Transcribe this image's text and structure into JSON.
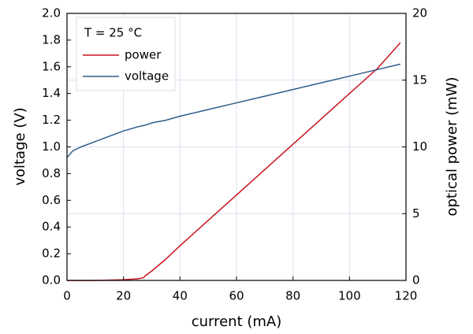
{
  "chart_data": {
    "type": "line",
    "x_label": "current (mA)",
    "y_label": "voltage (V)",
    "y2_label": "optical power (mW)",
    "legend_title": "T = 25 °C",
    "legend": "upper left",
    "grid": true,
    "x": [
      0,
      2,
      5,
      10,
      15,
      20,
      25,
      27,
      28,
      30,
      35,
      40,
      50,
      60,
      70,
      80,
      90,
      100,
      110,
      118
    ],
    "series": [
      {
        "name": "power",
        "color": "#c8141e",
        "axis": "y2",
        "values": [
          0,
          0,
          0,
          0,
          0.02,
          0.05,
          0.12,
          0.2,
          0.4,
          0.7,
          1.6,
          2.6,
          4.5,
          6.4,
          8.3,
          10.2,
          12.1,
          14.0,
          15.9,
          17.8
        ]
      },
      {
        "name": "voltage",
        "color": "#2f5d8c",
        "axis": "y",
        "values": [
          0.92,
          0.97,
          1.0,
          1.04,
          1.08,
          1.12,
          1.15,
          1.16,
          1.165,
          1.18,
          1.2,
          1.23,
          1.28,
          1.33,
          1.38,
          1.43,
          1.48,
          1.53,
          1.58,
          1.62
        ]
      }
    ],
    "xlim": [
      0,
      120
    ],
    "xticks": [
      0,
      20,
      40,
      60,
      80,
      100,
      120
    ],
    "ylim": [
      0,
      2
    ],
    "yticks": [
      {
        "value": 0,
        "label": "0.0"
      },
      0.2,
      0.4,
      0.6,
      0.8,
      {
        "value": 1,
        "label": "1.0"
      },
      1.2,
      1.4,
      1.6,
      1.8,
      {
        "value": 2,
        "label": "2.0"
      }
    ],
    "y2lim": [
      0,
      20
    ],
    "y2ticks": [
      0,
      5,
      10,
      15,
      20
    ]
  }
}
